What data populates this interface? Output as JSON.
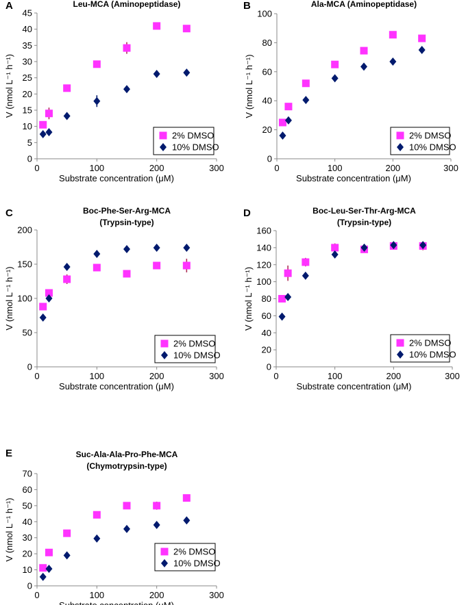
{
  "colors": {
    "dmso2": "#ff33ff",
    "dmso10": "#001a6e",
    "err2": "#b0305a",
    "err10": "#001a6e"
  },
  "chart_data": [
    {
      "panel": "A",
      "type": "scatter",
      "title": [
        "Leu-MCA (Aminopeptidase)"
      ],
      "xlabel": "Substrate  concentration (μM)",
      "ylabel": "V (nmol L⁻¹ h⁻¹)",
      "xlim": [
        0,
        300
      ],
      "xticks": [
        0,
        100,
        200,
        300
      ],
      "ylim": [
        0,
        45
      ],
      "yticks": [
        0,
        5,
        10,
        15,
        20,
        25,
        30,
        35,
        40,
        45
      ],
      "legend_position": "bottom-right",
      "series": [
        {
          "name": "2% DMSO",
          "marker": "square",
          "x": [
            10,
            20,
            50,
            100,
            150,
            200,
            250
          ],
          "y": [
            10.5,
            14,
            21.8,
            29.2,
            34.2,
            41,
            40.2
          ],
          "err": [
            0.5,
            1.8,
            0.4,
            0.6,
            1.8,
            0.4,
            0.4
          ]
        },
        {
          "name": "10% DMSO",
          "marker": "diamond",
          "x": [
            10,
            20,
            50,
            100,
            150,
            200,
            250
          ],
          "y": [
            7.6,
            8.2,
            13.2,
            17.8,
            21.5,
            26.2,
            26.6
          ],
          "err": [
            0.3,
            0.4,
            0.3,
            1.8,
            0.4,
            0.3,
            0.3
          ]
        }
      ]
    },
    {
      "panel": "B",
      "type": "scatter",
      "title": [
        "Ala-MCA (Aminopeptidase)"
      ],
      "xlabel": "Substrate  concentration (μM)",
      "ylabel": "V (nmol L⁻¹ h⁻¹)",
      "xlim": [
        0,
        300
      ],
      "xticks": [
        0,
        100,
        200,
        300
      ],
      "ylim": [
        0,
        100
      ],
      "yticks": [
        0,
        20,
        40,
        60,
        80,
        100
      ],
      "legend_position": "bottom-right",
      "series": [
        {
          "name": "2% DMSO",
          "marker": "square",
          "x": [
            10,
            20,
            50,
            100,
            150,
            200,
            250
          ],
          "y": [
            25,
            36,
            52,
            65,
            74.5,
            85.5,
            83
          ],
          "err": [
            1,
            1,
            1,
            1.5,
            1,
            1,
            1
          ]
        },
        {
          "name": "10% DMSO",
          "marker": "diamond",
          "x": [
            10,
            20,
            50,
            100,
            150,
            200,
            250
          ],
          "y": [
            16,
            26.5,
            40.5,
            55.5,
            63.5,
            67,
            75
          ],
          "err": [
            0.5,
            0.5,
            0.5,
            0.5,
            0.5,
            0.5,
            0.5
          ]
        }
      ]
    },
    {
      "panel": "C",
      "type": "scatter",
      "title": [
        "Boc-Phe-Ser-Arg-MCA",
        "(Trypsin-type)"
      ],
      "xlabel": "Substrate  concentration (μM)",
      "ylabel": "V (nmol L⁻¹ h⁻¹)",
      "xlim": [
        0,
        300
      ],
      "xticks": [
        0,
        100,
        200,
        300
      ],
      "ylim": [
        0,
        200
      ],
      "yticks": [
        0,
        50,
        100,
        150,
        200
      ],
      "legend_position": "bottom-right",
      "series": [
        {
          "name": "2% DMSO",
          "marker": "square",
          "x": [
            10,
            20,
            50,
            100,
            150,
            200,
            250
          ],
          "y": [
            88,
            108,
            128,
            145,
            136,
            148,
            148
          ],
          "err": [
            2,
            2,
            7,
            2,
            2,
            2,
            10
          ]
        },
        {
          "name": "10% DMSO",
          "marker": "diamond",
          "x": [
            10,
            20,
            50,
            100,
            150,
            200,
            250
          ],
          "y": [
            72,
            100,
            146,
            165,
            172,
            174,
            174
          ],
          "err": [
            1,
            1,
            1,
            1,
            1,
            1,
            1
          ]
        }
      ]
    },
    {
      "panel": "D",
      "type": "scatter",
      "title": [
        "Boc-Leu-Ser-Thr-Arg-MCA",
        "(Trypsin-type)"
      ],
      "xlabel": "Substrate  concentration (μM)",
      "ylabel": "V (nmol L⁻¹ h⁻¹)",
      "xlim": [
        0,
        300
      ],
      "xticks": [
        0,
        100,
        200,
        300
      ],
      "ylim": [
        0,
        160
      ],
      "yticks": [
        0,
        20,
        40,
        60,
        80,
        100,
        120,
        140,
        160
      ],
      "legend_position": "bottom-right",
      "series": [
        {
          "name": "2% DMSO",
          "marker": "square",
          "x": [
            10,
            20,
            50,
            100,
            150,
            200,
            250
          ],
          "y": [
            80,
            110,
            123,
            140,
            138,
            142,
            142
          ],
          "err": [
            1,
            9,
            5,
            5,
            4,
            3,
            5
          ]
        },
        {
          "name": "10% DMSO",
          "marker": "diamond",
          "x": [
            10,
            20,
            50,
            100,
            150,
            200,
            250
          ],
          "y": [
            59,
            82,
            107,
            132,
            140,
            143,
            143
          ],
          "err": [
            1,
            1,
            1,
            1,
            1,
            1,
            1
          ]
        }
      ]
    },
    {
      "panel": "E",
      "type": "scatter",
      "title": [
        "Suc-Ala-Ala-Pro-Phe-MCA",
        "(Chymotrypsin-type)"
      ],
      "xlabel": "Substrate  concentration (μM)",
      "ylabel": "V (nmol L⁻¹ h⁻¹)",
      "xlim": [
        0,
        300
      ],
      "xticks": [
        0,
        100,
        200,
        300
      ],
      "ylim": [
        0,
        70
      ],
      "yticks": [
        0,
        10,
        20,
        30,
        40,
        50,
        60,
        70
      ],
      "legend_position": "bottom-right",
      "series": [
        {
          "name": "2% DMSO",
          "marker": "square",
          "x": [
            10,
            20,
            50,
            100,
            150,
            200,
            250
          ],
          "y": [
            11.2,
            20.8,
            32.8,
            44.3,
            50,
            50,
            54.8
          ],
          "err": [
            0.4,
            0.4,
            0.4,
            0.4,
            1.5,
            2.5,
            1.8
          ]
        },
        {
          "name": "10% DMSO",
          "marker": "diamond",
          "x": [
            10,
            20,
            50,
            100,
            150,
            200,
            250
          ],
          "y": [
            5.6,
            10.6,
            19,
            29.5,
            35.5,
            38,
            40.8
          ],
          "err": [
            0.3,
            0.3,
            0.3,
            0.3,
            0.3,
            0.3,
            0.3
          ]
        }
      ]
    }
  ]
}
